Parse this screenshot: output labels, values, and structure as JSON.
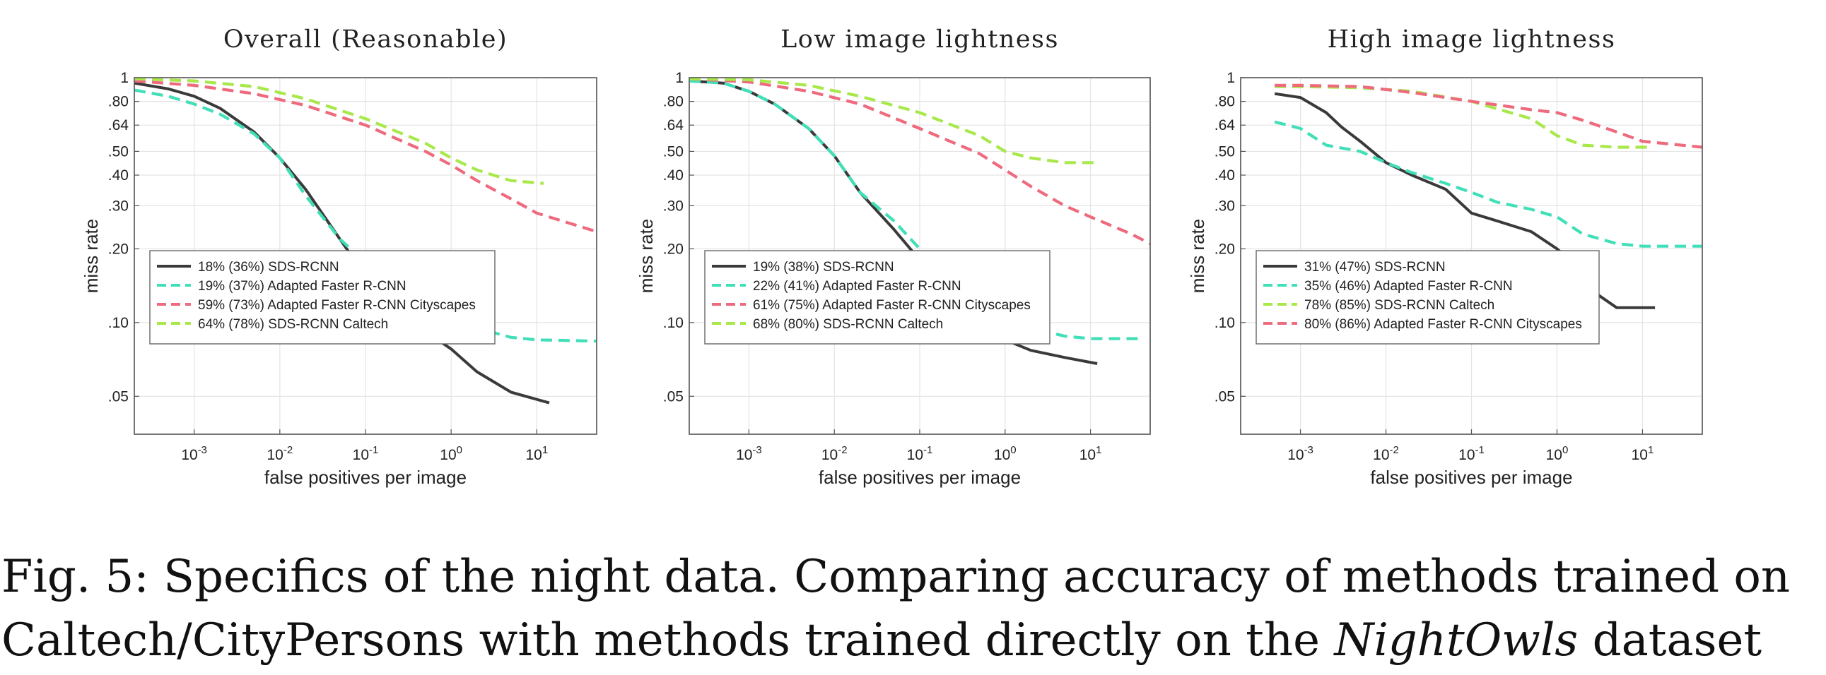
{
  "caption": {
    "line1": "Fig. 5: Specifics of the night data. Comparing accuracy of methods trained on",
    "line2_prefix": "Caltech/CityPersons with methods trained directly on the ",
    "line2_em": "NightOwls",
    "line2_suffix": " dataset"
  },
  "colors": {
    "sds_rcnn": "#3a3a3a",
    "adapted_faster": "#40dfb7",
    "cityscapes": "#ee6a7d",
    "caltech": "#a8e84a"
  },
  "chart_data": [
    {
      "type": "line",
      "title": "Overall (Reasonable)",
      "xlabel": "false positives per image",
      "ylabel": "miss rate",
      "xscale": "log",
      "yscale": "log",
      "xlim": [
        0.0002,
        50
      ],
      "ylim": [
        0.035,
        1
      ],
      "xticks": [
        0.001,
        0.01,
        0.1,
        1,
        10
      ],
      "xtick_labels": [
        "10-3",
        "10-2",
        "10-1",
        "100",
        "101"
      ],
      "yticks": [
        0.05,
        0.1,
        0.2,
        0.3,
        0.4,
        0.5,
        0.64,
        0.8,
        1
      ],
      "ytick_labels": [
        ".05",
        ".10",
        ".20",
        ".30",
        ".40",
        ".50",
        ".64",
        ".80",
        "1"
      ],
      "grid": true,
      "legend_position": "lower-left",
      "series": [
        {
          "name": "18% (36%) SDS-RCNN",
          "color_key": "sds_rcnn",
          "dash": "solid",
          "x": [
            0.0002,
            0.0005,
            0.001,
            0.002,
            0.005,
            0.01,
            0.02,
            0.05,
            0.1,
            0.2,
            0.5,
            1,
            2,
            5,
            14
          ],
          "y": [
            0.95,
            0.9,
            0.84,
            0.75,
            0.6,
            0.47,
            0.35,
            0.22,
            0.155,
            0.12,
            0.092,
            0.078,
            0.063,
            0.052,
            0.047
          ]
        },
        {
          "name": "19% (37%) Adapted Faster R-CNN",
          "color_key": "adapted_faster",
          "dash": "dashed",
          "x": [
            0.0002,
            0.0005,
            0.001,
            0.002,
            0.005,
            0.01,
            0.02,
            0.05,
            0.1,
            0.2,
            0.5,
            1,
            2,
            5,
            10,
            50
          ],
          "y": [
            0.89,
            0.84,
            0.78,
            0.71,
            0.59,
            0.47,
            0.33,
            0.22,
            0.175,
            0.145,
            0.125,
            0.11,
            0.095,
            0.087,
            0.085,
            0.084
          ]
        },
        {
          "name": "59% (73%) Adapted Faster R-CNN Cityscapes",
          "color_key": "cityscapes",
          "dash": "dashed",
          "x": [
            0.0002,
            0.001,
            0.005,
            0.02,
            0.1,
            0.5,
            1,
            2,
            5,
            10,
            50
          ],
          "y": [
            0.97,
            0.93,
            0.86,
            0.77,
            0.64,
            0.5,
            0.44,
            0.38,
            0.32,
            0.28,
            0.235
          ]
        },
        {
          "name": "64% (78%) SDS-RCNN Caltech",
          "color_key": "caltech",
          "dash": "dashed",
          "x": [
            0.0002,
            0.001,
            0.005,
            0.02,
            0.1,
            0.5,
            1,
            2,
            5,
            12
          ],
          "y": [
            0.99,
            0.97,
            0.92,
            0.82,
            0.68,
            0.54,
            0.47,
            0.42,
            0.38,
            0.37
          ]
        }
      ]
    },
    {
      "type": "line",
      "title": "Low image lightness",
      "xlabel": "false positives per image",
      "ylabel": "miss rate",
      "xscale": "log",
      "yscale": "log",
      "xlim": [
        0.0002,
        50
      ],
      "ylim": [
        0.035,
        1
      ],
      "xticks": [
        0.001,
        0.01,
        0.1,
        1,
        10
      ],
      "xtick_labels": [
        "10-3",
        "10-2",
        "10-1",
        "100",
        "101"
      ],
      "yticks": [
        0.05,
        0.1,
        0.2,
        0.3,
        0.4,
        0.5,
        0.64,
        0.8,
        1
      ],
      "ytick_labels": [
        ".05",
        ".10",
        ".20",
        ".30",
        ".40",
        ".50",
        ".64",
        ".80",
        "1"
      ],
      "grid": true,
      "legend_position": "lower-left",
      "series": [
        {
          "name": "19% (38%) SDS-RCNN",
          "color_key": "sds_rcnn",
          "dash": "solid",
          "x": [
            0.0002,
            0.0005,
            0.001,
            0.002,
            0.005,
            0.01,
            0.02,
            0.05,
            0.1,
            0.2,
            0.5,
            1,
            2,
            5,
            12
          ],
          "y": [
            0.97,
            0.95,
            0.88,
            0.78,
            0.62,
            0.48,
            0.34,
            0.24,
            0.18,
            0.135,
            0.095,
            0.085,
            0.077,
            0.072,
            0.068
          ]
        },
        {
          "name": "22% (41%) Adapted Faster R-CNN",
          "color_key": "adapted_faster",
          "dash": "dashed",
          "x": [
            0.0002,
            0.0005,
            0.001,
            0.002,
            0.005,
            0.01,
            0.02,
            0.05,
            0.1,
            0.2,
            0.5,
            1,
            2,
            5,
            10,
            40
          ],
          "y": [
            0.97,
            0.95,
            0.88,
            0.78,
            0.62,
            0.48,
            0.34,
            0.26,
            0.2,
            0.16,
            0.125,
            0.107,
            0.095,
            0.088,
            0.086,
            0.086
          ]
        },
        {
          "name": "61% (75%) Adapted Faster R-CNN Cityscapes",
          "color_key": "cityscapes",
          "dash": "dashed",
          "x": [
            0.0002,
            0.001,
            0.005,
            0.02,
            0.1,
            0.5,
            1,
            2,
            5,
            10,
            30,
            50
          ],
          "y": [
            0.99,
            0.96,
            0.88,
            0.78,
            0.62,
            0.49,
            0.42,
            0.36,
            0.3,
            0.27,
            0.23,
            0.21
          ]
        },
        {
          "name": "68% (80%) SDS-RCNN Caltech",
          "color_key": "caltech",
          "dash": "dashed",
          "x": [
            0.0002,
            0.001,
            0.005,
            0.02,
            0.1,
            0.5,
            1,
            2,
            5,
            12
          ],
          "y": [
            0.99,
            0.98,
            0.93,
            0.84,
            0.72,
            0.58,
            0.5,
            0.47,
            0.45,
            0.45
          ]
        }
      ]
    },
    {
      "type": "line",
      "title": "High image lightness",
      "xlabel": "false positives per image",
      "ylabel": "miss rate",
      "xscale": "log",
      "yscale": "log",
      "xlim": [
        0.0002,
        50
      ],
      "ylim": [
        0.035,
        1
      ],
      "xticks": [
        0.001,
        0.01,
        0.1,
        1,
        10
      ],
      "xtick_labels": [
        "10-3",
        "10-2",
        "10-1",
        "100",
        "101"
      ],
      "yticks": [
        0.05,
        0.1,
        0.2,
        0.3,
        0.4,
        0.5,
        0.64,
        0.8,
        1
      ],
      "ytick_labels": [
        ".05",
        ".10",
        ".20",
        ".30",
        ".40",
        ".50",
        ".64",
        ".80",
        "1"
      ],
      "grid": true,
      "legend_position": "lower-left",
      "series": [
        {
          "name": "31% (47%) SDS-RCNN",
          "color_key": "sds_rcnn",
          "dash": "solid",
          "x": [
            0.0005,
            0.001,
            0.002,
            0.003,
            0.005,
            0.01,
            0.02,
            0.05,
            0.1,
            0.2,
            0.5,
            1,
            2,
            3,
            5,
            14
          ],
          "y": [
            0.86,
            0.83,
            0.72,
            0.63,
            0.55,
            0.45,
            0.4,
            0.35,
            0.28,
            0.26,
            0.235,
            0.2,
            0.16,
            0.13,
            0.115,
            0.115
          ]
        },
        {
          "name": "35% (46%) Adapted Faster R-CNN",
          "color_key": "adapted_faster",
          "dash": "dashed",
          "x": [
            0.0005,
            0.001,
            0.002,
            0.005,
            0.01,
            0.02,
            0.05,
            0.1,
            0.2,
            0.5,
            1,
            2,
            5,
            10,
            50
          ],
          "y": [
            0.66,
            0.62,
            0.53,
            0.5,
            0.45,
            0.41,
            0.37,
            0.34,
            0.31,
            0.29,
            0.27,
            0.23,
            0.21,
            0.205,
            0.205
          ]
        },
        {
          "name": "78% (85%) SDS-RCNN Caltech",
          "color_key": "caltech",
          "dash": "dashed",
          "x": [
            0.0005,
            0.001,
            0.005,
            0.02,
            0.1,
            0.5,
            1,
            2,
            5,
            12
          ],
          "y": [
            0.92,
            0.92,
            0.91,
            0.88,
            0.8,
            0.68,
            0.58,
            0.53,
            0.52,
            0.52
          ]
        },
        {
          "name": "80% (86%) Adapted Faster R-CNN Cityscapes",
          "color_key": "cityscapes",
          "dash": "dashed",
          "x": [
            0.0005,
            0.001,
            0.005,
            0.02,
            0.1,
            0.5,
            1,
            2,
            5,
            10,
            50
          ],
          "y": [
            0.93,
            0.93,
            0.92,
            0.87,
            0.8,
            0.74,
            0.72,
            0.67,
            0.6,
            0.55,
            0.52
          ]
        }
      ]
    }
  ]
}
